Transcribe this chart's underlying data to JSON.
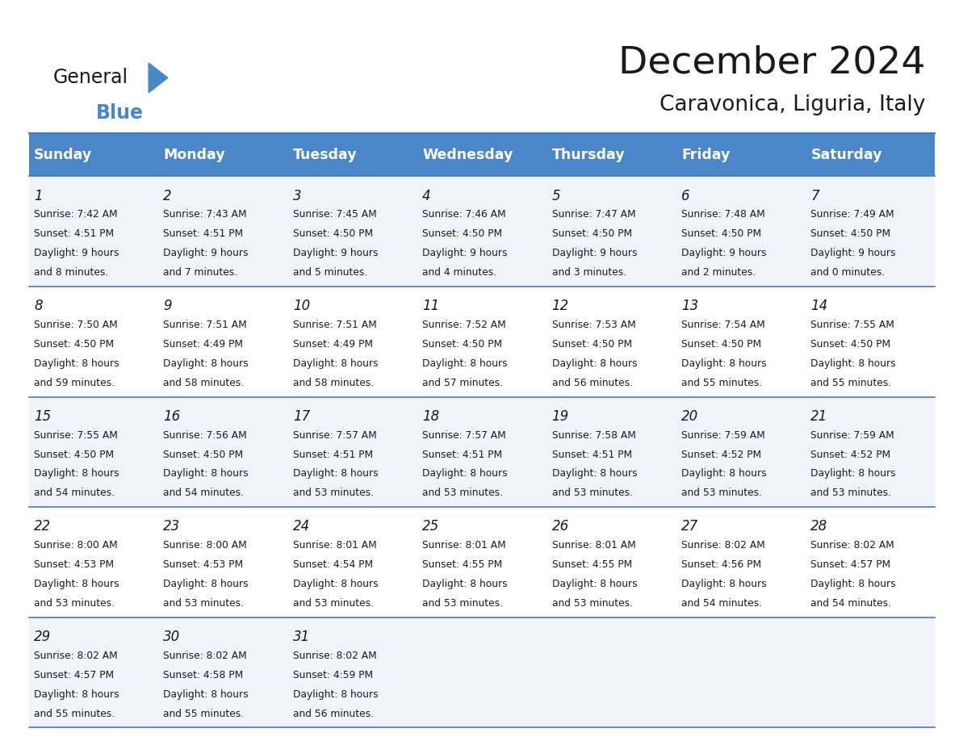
{
  "title": "December 2024",
  "subtitle": "Caravonica, Liguria, Italy",
  "header_bg": "#4a86c8",
  "header_text": "#ffffff",
  "row_bg_odd": "#f0f4f8",
  "row_bg_even": "#ffffff",
  "line_color": "#4a7ab5",
  "text_color": "#1a1a1a",
  "days_of_week": [
    "Sunday",
    "Monday",
    "Tuesday",
    "Wednesday",
    "Thursday",
    "Friday",
    "Saturday"
  ],
  "weeks": [
    [
      {
        "day": 1,
        "sunrise": "7:42 AM",
        "sunset": "4:51 PM",
        "daylight_line1": "Daylight: 9 hours",
        "daylight_line2": "and 8 minutes."
      },
      {
        "day": 2,
        "sunrise": "7:43 AM",
        "sunset": "4:51 PM",
        "daylight_line1": "Daylight: 9 hours",
        "daylight_line2": "and 7 minutes."
      },
      {
        "day": 3,
        "sunrise": "7:45 AM",
        "sunset": "4:50 PM",
        "daylight_line1": "Daylight: 9 hours",
        "daylight_line2": "and 5 minutes."
      },
      {
        "day": 4,
        "sunrise": "7:46 AM",
        "sunset": "4:50 PM",
        "daylight_line1": "Daylight: 9 hours",
        "daylight_line2": "and 4 minutes."
      },
      {
        "day": 5,
        "sunrise": "7:47 AM",
        "sunset": "4:50 PM",
        "daylight_line1": "Daylight: 9 hours",
        "daylight_line2": "and 3 minutes."
      },
      {
        "day": 6,
        "sunrise": "7:48 AM",
        "sunset": "4:50 PM",
        "daylight_line1": "Daylight: 9 hours",
        "daylight_line2": "and 2 minutes."
      },
      {
        "day": 7,
        "sunrise": "7:49 AM",
        "sunset": "4:50 PM",
        "daylight_line1": "Daylight: 9 hours",
        "daylight_line2": "and 0 minutes."
      }
    ],
    [
      {
        "day": 8,
        "sunrise": "7:50 AM",
        "sunset": "4:50 PM",
        "daylight_line1": "Daylight: 8 hours",
        "daylight_line2": "and 59 minutes."
      },
      {
        "day": 9,
        "sunrise": "7:51 AM",
        "sunset": "4:49 PM",
        "daylight_line1": "Daylight: 8 hours",
        "daylight_line2": "and 58 minutes."
      },
      {
        "day": 10,
        "sunrise": "7:51 AM",
        "sunset": "4:49 PM",
        "daylight_line1": "Daylight: 8 hours",
        "daylight_line2": "and 58 minutes."
      },
      {
        "day": 11,
        "sunrise": "7:52 AM",
        "sunset": "4:50 PM",
        "daylight_line1": "Daylight: 8 hours",
        "daylight_line2": "and 57 minutes."
      },
      {
        "day": 12,
        "sunrise": "7:53 AM",
        "sunset": "4:50 PM",
        "daylight_line1": "Daylight: 8 hours",
        "daylight_line2": "and 56 minutes."
      },
      {
        "day": 13,
        "sunrise": "7:54 AM",
        "sunset": "4:50 PM",
        "daylight_line1": "Daylight: 8 hours",
        "daylight_line2": "and 55 minutes."
      },
      {
        "day": 14,
        "sunrise": "7:55 AM",
        "sunset": "4:50 PM",
        "daylight_line1": "Daylight: 8 hours",
        "daylight_line2": "and 55 minutes."
      }
    ],
    [
      {
        "day": 15,
        "sunrise": "7:55 AM",
        "sunset": "4:50 PM",
        "daylight_line1": "Daylight: 8 hours",
        "daylight_line2": "and 54 minutes."
      },
      {
        "day": 16,
        "sunrise": "7:56 AM",
        "sunset": "4:50 PM",
        "daylight_line1": "Daylight: 8 hours",
        "daylight_line2": "and 54 minutes."
      },
      {
        "day": 17,
        "sunrise": "7:57 AM",
        "sunset": "4:51 PM",
        "daylight_line1": "Daylight: 8 hours",
        "daylight_line2": "and 53 minutes."
      },
      {
        "day": 18,
        "sunrise": "7:57 AM",
        "sunset": "4:51 PM",
        "daylight_line1": "Daylight: 8 hours",
        "daylight_line2": "and 53 minutes."
      },
      {
        "day": 19,
        "sunrise": "7:58 AM",
        "sunset": "4:51 PM",
        "daylight_line1": "Daylight: 8 hours",
        "daylight_line2": "and 53 minutes."
      },
      {
        "day": 20,
        "sunrise": "7:59 AM",
        "sunset": "4:52 PM",
        "daylight_line1": "Daylight: 8 hours",
        "daylight_line2": "and 53 minutes."
      },
      {
        "day": 21,
        "sunrise": "7:59 AM",
        "sunset": "4:52 PM",
        "daylight_line1": "Daylight: 8 hours",
        "daylight_line2": "and 53 minutes."
      }
    ],
    [
      {
        "day": 22,
        "sunrise": "8:00 AM",
        "sunset": "4:53 PM",
        "daylight_line1": "Daylight: 8 hours",
        "daylight_line2": "and 53 minutes."
      },
      {
        "day": 23,
        "sunrise": "8:00 AM",
        "sunset": "4:53 PM",
        "daylight_line1": "Daylight: 8 hours",
        "daylight_line2": "and 53 minutes."
      },
      {
        "day": 24,
        "sunrise": "8:01 AM",
        "sunset": "4:54 PM",
        "daylight_line1": "Daylight: 8 hours",
        "daylight_line2": "and 53 minutes."
      },
      {
        "day": 25,
        "sunrise": "8:01 AM",
        "sunset": "4:55 PM",
        "daylight_line1": "Daylight: 8 hours",
        "daylight_line2": "and 53 minutes."
      },
      {
        "day": 26,
        "sunrise": "8:01 AM",
        "sunset": "4:55 PM",
        "daylight_line1": "Daylight: 8 hours",
        "daylight_line2": "and 53 minutes."
      },
      {
        "day": 27,
        "sunrise": "8:02 AM",
        "sunset": "4:56 PM",
        "daylight_line1": "Daylight: 8 hours",
        "daylight_line2": "and 54 minutes."
      },
      {
        "day": 28,
        "sunrise": "8:02 AM",
        "sunset": "4:57 PM",
        "daylight_line1": "Daylight: 8 hours",
        "daylight_line2": "and 54 minutes."
      }
    ],
    [
      {
        "day": 29,
        "sunrise": "8:02 AM",
        "sunset": "4:57 PM",
        "daylight_line1": "Daylight: 8 hours",
        "daylight_line2": "and 55 minutes."
      },
      {
        "day": 30,
        "sunrise": "8:02 AM",
        "sunset": "4:58 PM",
        "daylight_line1": "Daylight: 8 hours",
        "daylight_line2": "and 55 minutes."
      },
      {
        "day": 31,
        "sunrise": "8:02 AM",
        "sunset": "4:59 PM",
        "daylight_line1": "Daylight: 8 hours",
        "daylight_line2": "and 56 minutes."
      },
      null,
      null,
      null,
      null
    ]
  ]
}
